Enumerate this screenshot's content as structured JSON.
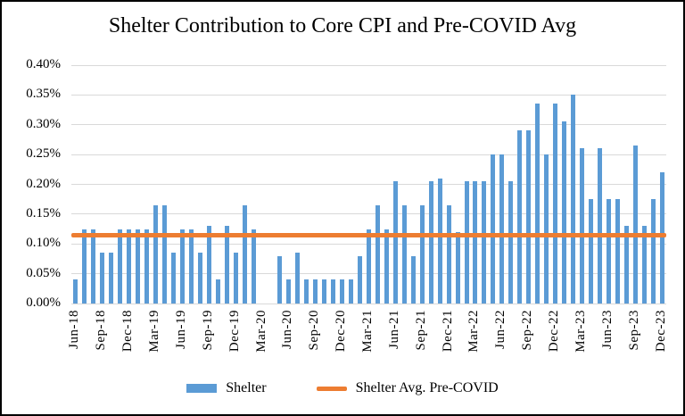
{
  "chart_data": {
    "type": "bar",
    "title": "Shelter Contribution to Core CPI and Pre-COVID Avg",
    "xlabel": "",
    "ylabel": "",
    "ylim": [
      0,
      0.4
    ],
    "y_tick_step": 0.05,
    "y_ticks": [
      "0.00%",
      "0.05%",
      "0.10%",
      "0.15%",
      "0.20%",
      "0.25%",
      "0.30%",
      "0.35%",
      "0.40%"
    ],
    "grid": "horizontal",
    "legend_position": "bottom",
    "x_tick_interval": 3,
    "x_tick_labels": [
      "Jun-18",
      "Sep-18",
      "Dec-18",
      "Mar-19",
      "Jun-19",
      "Sep-19",
      "Dec-19",
      "Mar-20",
      "Jun-20",
      "Sep-20",
      "Dec-20",
      "Mar-21",
      "Jun-21",
      "Sep-21",
      "Dec-21",
      "Mar-22",
      "Jun-22",
      "Sep-22",
      "Dec-22",
      "Mar-23",
      "Jun-23",
      "Sep-23",
      "Dec-23"
    ],
    "categories": [
      "Jun-18",
      "Jul-18",
      "Aug-18",
      "Sep-18",
      "Oct-18",
      "Nov-18",
      "Dec-18",
      "Jan-19",
      "Feb-19",
      "Mar-19",
      "Apr-19",
      "May-19",
      "Jun-19",
      "Jul-19",
      "Aug-19",
      "Sep-19",
      "Oct-19",
      "Nov-19",
      "Dec-19",
      "Jan-20",
      "Feb-20",
      "Mar-20",
      "Apr-20",
      "May-20",
      "Jun-20",
      "Jul-20",
      "Aug-20",
      "Sep-20",
      "Oct-20",
      "Nov-20",
      "Dec-20",
      "Jan-21",
      "Feb-21",
      "Mar-21",
      "Apr-21",
      "May-21",
      "Jun-21",
      "Jul-21",
      "Aug-21",
      "Sep-21",
      "Oct-21",
      "Nov-21",
      "Dec-21",
      "Jan-22",
      "Feb-22",
      "Mar-22",
      "Apr-22",
      "May-22",
      "Jun-22",
      "Jul-22",
      "Aug-22",
      "Sep-22",
      "Oct-22",
      "Nov-22",
      "Dec-22",
      "Jan-23",
      "Feb-23",
      "Mar-23",
      "Apr-23",
      "May-23",
      "Jun-23",
      "Jul-23",
      "Aug-23",
      "Sep-23",
      "Oct-23",
      "Nov-23",
      "Dec-23"
    ],
    "series": [
      {
        "name": "Shelter",
        "values": [
          0.04,
          0.125,
          0.125,
          0.085,
          0.085,
          0.125,
          0.125,
          0.125,
          0.125,
          0.165,
          0.165,
          0.085,
          0.125,
          0.125,
          0.085,
          0.13,
          0.04,
          0.13,
          0.085,
          0.165,
          0.125,
          0.0,
          0.0,
          0.08,
          0.04,
          0.085,
          0.04,
          0.04,
          0.04,
          0.04,
          0.04,
          0.04,
          0.08,
          0.125,
          0.165,
          0.125,
          0.205,
          0.165,
          0.08,
          0.165,
          0.205,
          0.21,
          0.165,
          0.12,
          0.205,
          0.205,
          0.205,
          0.25,
          0.25,
          0.205,
          0.29,
          0.29,
          0.335,
          0.25,
          0.335,
          0.305,
          0.35,
          0.26,
          0.175,
          0.26,
          0.175,
          0.175,
          0.13,
          0.265,
          0.13,
          0.175,
          0.22
        ]
      }
    ],
    "reference_line": {
      "name": "Shelter Avg. Pre-COVID",
      "value": 0.115
    },
    "legend": {
      "shelter_label": "Shelter",
      "avg_label": "Shelter Avg. Pre-COVID"
    },
    "colors": {
      "bar": "#5b9bd5",
      "line": "#ed7d31",
      "gridline": "#d9d9d9",
      "text": "#000000"
    }
  }
}
